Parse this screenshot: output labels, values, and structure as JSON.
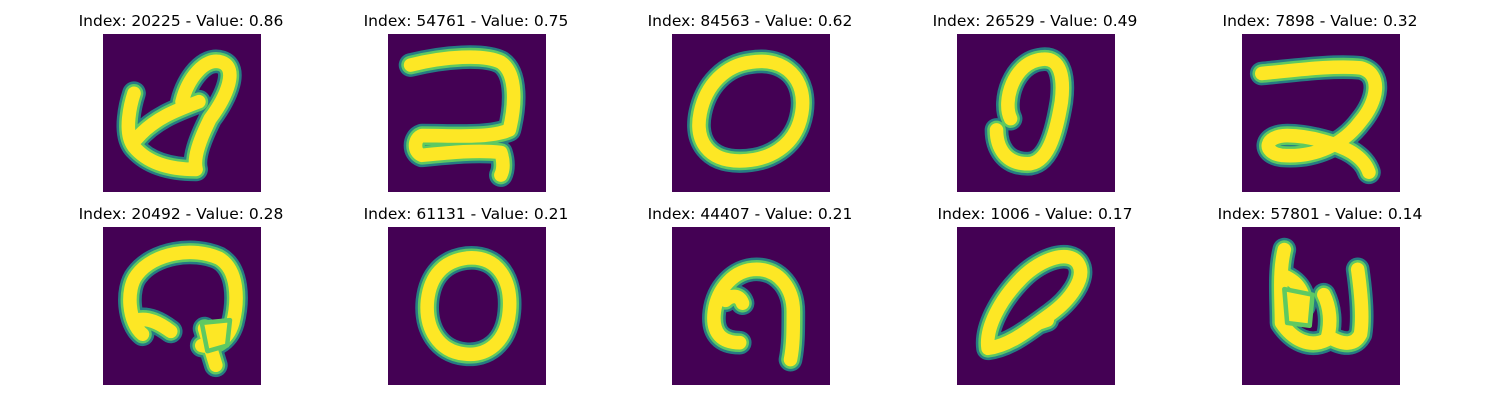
{
  "figure": {
    "colors": {
      "background": "#440154",
      "ring_outer": "#21918c",
      "ring_mid": "#5ec962",
      "stroke_core": "#fde725"
    },
    "panels": [
      {
        "title": "Index: 20225 - Value: 0.86",
        "glyph": "digit-2-looped"
      },
      {
        "title": "Index: 54761 - Value: 0.75",
        "glyph": "digit-2-open"
      },
      {
        "title": "Index: 84563 - Value: 0.62",
        "glyph": "digit-0-wide"
      },
      {
        "title": "Index: 26529 - Value: 0.49",
        "glyph": "digit-0-slanted"
      },
      {
        "title": "Index: 7898 - Value: 0.32",
        "glyph": "digit-2-looped-flat"
      },
      {
        "title": "Index: 20492 - Value: 0.28",
        "glyph": "digit-curled"
      },
      {
        "title": "Index: 61131 - Value: 0.21",
        "glyph": "digit-0-round"
      },
      {
        "title": "Index: 44407 - Value: 0.21",
        "glyph": "digit-arch"
      },
      {
        "title": "Index: 1006 - Value: 0.17",
        "glyph": "digit-0-leaning"
      },
      {
        "title": "Index: 57801 - Value: 0.14",
        "glyph": "digit-w"
      }
    ]
  }
}
